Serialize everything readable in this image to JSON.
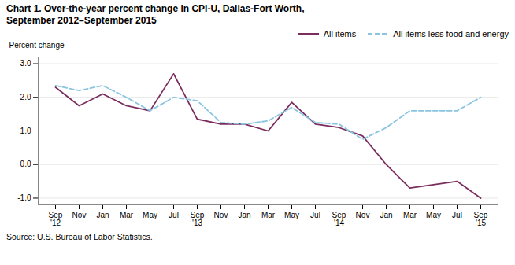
{
  "chart_data": {
    "type": "line",
    "title": "Chart 1. Over-the-year percent change in CPI-U, Dallas-Fort Worth,",
    "subtitle": "September 2012–September 2015",
    "ylabel": "Percent change",
    "source": "Source: U.S. Bureau of Labor Statistics.",
    "categories": [
      "Sep\n'12",
      "Nov",
      "Jan",
      "Mar",
      "May",
      "Jul",
      "Sep\n'13",
      "Nov",
      "Jan",
      "Mar",
      "May",
      "Jul",
      "Sep\n'14",
      "Nov",
      "Jan",
      "Mar",
      "May",
      "Jul",
      "Sep\n'15"
    ],
    "series": [
      {
        "name": "All items",
        "color": "#7B2D5E",
        "line_style": "solid",
        "values": [
          2.3,
          1.75,
          2.1,
          1.75,
          1.6,
          2.7,
          1.35,
          1.2,
          1.2,
          1.0,
          1.85,
          1.2,
          1.1,
          0.85,
          0.0,
          -0.7,
          -0.6,
          -0.5,
          -1.0
        ]
      },
      {
        "name": "All items less food and energy",
        "color": "#89C4E1",
        "line_style": "dashed",
        "values": [
          2.35,
          2.2,
          2.35,
          2.0,
          1.6,
          2.0,
          1.9,
          1.25,
          1.2,
          1.3,
          1.7,
          1.25,
          1.2,
          0.75,
          1.1,
          1.6,
          1.6,
          1.6,
          2.0
        ]
      }
    ],
    "ylim": [
      -1.2,
      3.2
    ],
    "yticks": [
      {
        "value": -1.0,
        "label": "-1.0"
      },
      {
        "value": 0.0,
        "label": "0.0"
      },
      {
        "value": 1.0,
        "label": "1.0"
      },
      {
        "value": 2.0,
        "label": "2.0"
      },
      {
        "value": 3.0,
        "label": "3.0"
      }
    ],
    "grid": true,
    "legend": "upper right"
  }
}
